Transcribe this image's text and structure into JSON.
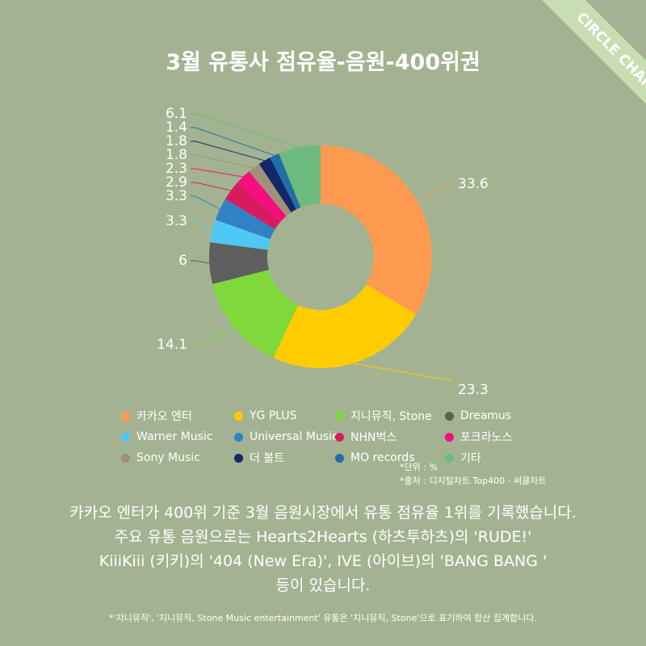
{
  "title": "3월 유통사 점유율-음원-400위권",
  "badge": "CIRCLE CHART",
  "chart_data": {
    "type": "pie",
    "style": "donut",
    "categories": [
      "카카오 엔터",
      "YG PLUS",
      "지니뮤직, Stone",
      "Dreamus",
      "Warner Music",
      "Universal Music",
      "NHN벅스",
      "포크라노스",
      "Sony Music",
      "더 볼트",
      "MO records",
      "기타"
    ],
    "values": [
      33.6,
      23.3,
      14.1,
      6,
      3.3,
      3.3,
      2.9,
      2.3,
      1.8,
      1.8,
      1.4,
      6.1
    ],
    "value_labels": [
      "33.6",
      "23.3",
      "14.1",
      "6",
      "3.3",
      "3.3",
      "2.9",
      "2.3",
      "1.8",
      "1.8",
      "1.4",
      "6.1"
    ],
    "colors": [
      "#fd9a4f",
      "#ffcc00",
      "#80d93b",
      "#5e5e5e",
      "#4fc8f5",
      "#3182c4",
      "#d81b60",
      "#f50e7d",
      "#a3907a",
      "#142768",
      "#1f6fa8",
      "#6cba7e"
    ],
    "legend_placement": "bottom"
  },
  "notes": {
    "unit": "*단위 : %",
    "source": "*출처 : 디지털차트 Top400 - 써클차트"
  },
  "body": {
    "line1": "카카오 엔터가 400위 기준 3월 음원시장에서 유통 점유율 1위를 기록했습니다.",
    "line2": "주요 유통 음원으로는 Hearts2Hearts (하츠투하츠)의 'RUDE!'",
    "line3": "KiiiKiii (키키)의 '404 (New Era)', IVE (아이브)의 'BANG BANG '",
    "line4": "등이 있습니다."
  },
  "footnote": "*'지니뮤직', '지니뮤직, Stone Music entertainment' 유통은 '지니뮤직, Stone'으로 표기하여 합산 집계합니다."
}
